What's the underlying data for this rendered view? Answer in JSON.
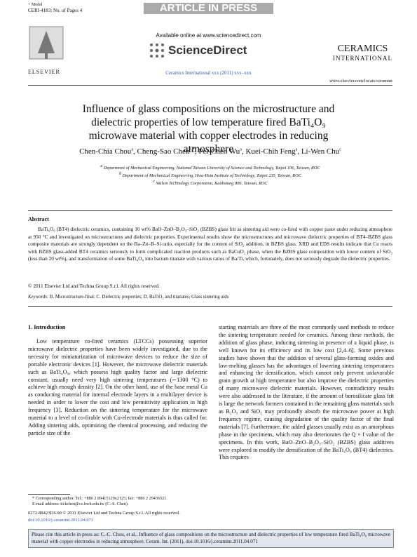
{
  "header": {
    "model": "+ Model",
    "ref": "CERI-4183; No. of Pages 4",
    "banner": "ARTICLE IN PRESS",
    "available": "Available online at www.sciencedirect.com",
    "sciencedirect": "ScienceDirect",
    "publisher": "ELSEVIER",
    "journal_line": "Ceramics International xxx (2011) xxx–xxx",
    "journal_logo_1": "CERAMICS",
    "journal_logo_2": "INTERNATIONAL",
    "url": "www.elsevier.com/locate/ceramint"
  },
  "article": {
    "title": "Influence of glass compositions on the microstructure and dielectric properties of low temperature fired BaTi₄O₉ microwave material with copper electrodes in reducing atmosphere",
    "authors": [
      {
        "name": "Chen-Chia Chou",
        "sup": "a"
      },
      {
        "name": "Cheng-Sao Chen",
        "sup": "b,*"
      },
      {
        "name": "Pei-Chen Wu",
        "sup": "a"
      },
      {
        "name": "Kuei-Chih Feng",
        "sup": "a"
      },
      {
        "name": "Li-Wen Chu",
        "sup": "c"
      }
    ],
    "affiliations": [
      {
        "sup": "a",
        "text": "Department of Mechanical Engineering, National Taiwan University of Science and Technology, Taipei 106, Taiwan, ROC"
      },
      {
        "sup": "b",
        "text": "Department of Mechanical Engineering, Hwa-Hsia Institute of Technology, Taipei 235, Taiwan, ROC"
      },
      {
        "sup": "c",
        "text": "Walsin Technology Corporation, Kaohsiung 806, Taiwan, ROC"
      }
    ],
    "abstract_heading": "Abstract",
    "abstract": "BaTi₄O₉ (BT4) dielectric ceramics, containing 10 wt% BaO–ZnO–B₂O₃–SiO₂ (BZBS) glass frit as sintering aid were co-fired with copper paste under reducing atmosphere at 950 °C and investigated on microstructures and dielectric properties. Experimental results show the microstructures and microwave dielectric properties of BT4–BZBS glass composite materials are strongly dependent on the Ba–Zn–B–Si ratio, especially for the content of SiO₂ addition, in BZBS glass. XRD and EDS results indicate that Cu reacts with BZBS glass-added BT4 ceramics seriously to form complicated reaction products such as BaCuO₂ phase, when the BZBS glass composition with lower content of SiO₂ (less than 20 wt%), and transformation of some BaTi₄O₉ into barium titanate with various ratios of Ba/Ti, which, fortunately, does not seriously degrade the dielectric properties.",
    "abstract_copyright": "© 2011 Elsevier Ltd and Techna Group S.r.l. All rights reserved.",
    "keywords_label": "Keywords:",
    "keywords": "B. Microstructure-final; C. Dielectric properties; D. BaTiO₃ and titanates; Glass sintering aids",
    "section_heading": "1. Introduction",
    "left_paragraph": "Low temperature co-fired ceramics (LTCCs) possessing superior microwave dielectric properties have been widely investigated, due to the necessity for miniaturization of microwave devices to reduce the size of portable electronic devices [1]. However, the microwave dielectric materials such as BaTi₄O₉, which possess high quality factor and large dielectric constant, usually need very high sintering temperatures (∼1300 °C) to achieve high enough density [2]. On the other hand, use of the base metal Cu as conducting material for internal electrode layers in a multilayer device is needed in order to lower the cost and low permittivity application in high frequency [3]. Reduction on the sintering temperature for the microwave material to a level of co-firable with Cu-electrode materials is thus called for. Adding sintering aids, optimizing the chemical processing, and reducing the particle size of the",
    "right_paragraph": "starting materials are three of the most commonly used methods to reduce the sintering temperature needed for ceramics. Among these methods, the addition of glass phase, inducing sintering in presence of a liquid phase, is well known for its efficiency and its low cost [2,4–6]. Some previous studies have shown that the addition of several glass-forming oxides and low-melting glasses has the advantages of lowering sintering temperatures and enhancing the densification, which cannot only prevent unfavorable grain growth at high temperature but also improve the dielectric properties of many microwave dielectric materials. However, contradictory results were also addressed in the literature, if the amount of borosilicate glass frit is large the network formers contained in the remaining glass materials such as B₂O₃ and SiO₂ may profoundly absorb the microwave power at high frequency regime, causing degradation of the quality factor of the final materials [7]. Furthermore, the added glasses usually exist as an amorphous phase in the specimens, which may also deteriorates the Q × f value of the specimens. In this work, BaO–ZnO–B₂O₃–SiO₂ (BZBS) glass additives were explored to modify the densification of the BaTi₄O₉ (BT4) dielectrics. This requires",
    "footnote_1": "* Corresponding author. Tel.: +886 2 89415129x2125; fax: +886 2 29436521.",
    "footnote_2": "E-mail address: tickchen@cc.hwh.edu.tw (C.-S. Chen).",
    "issn_line": "0272-8842/$36.00 © 2011 Elsevier Ltd and Techna Group S.r.l. All rights reserved.",
    "doi": "doi:10.1016/j.ceramint.2011.04.071",
    "cite_box": "Please cite this article in press as: C.-C. Chou, et al., Influence of glass compositions on the microstructure and dielectric properties of low temperature fired BaTi₄O₉ microwave material with copper electrodes in reducing atmosphere, Ceram. Int. (2011), doi:10.1016/j.ceramint.2011.04.071"
  }
}
